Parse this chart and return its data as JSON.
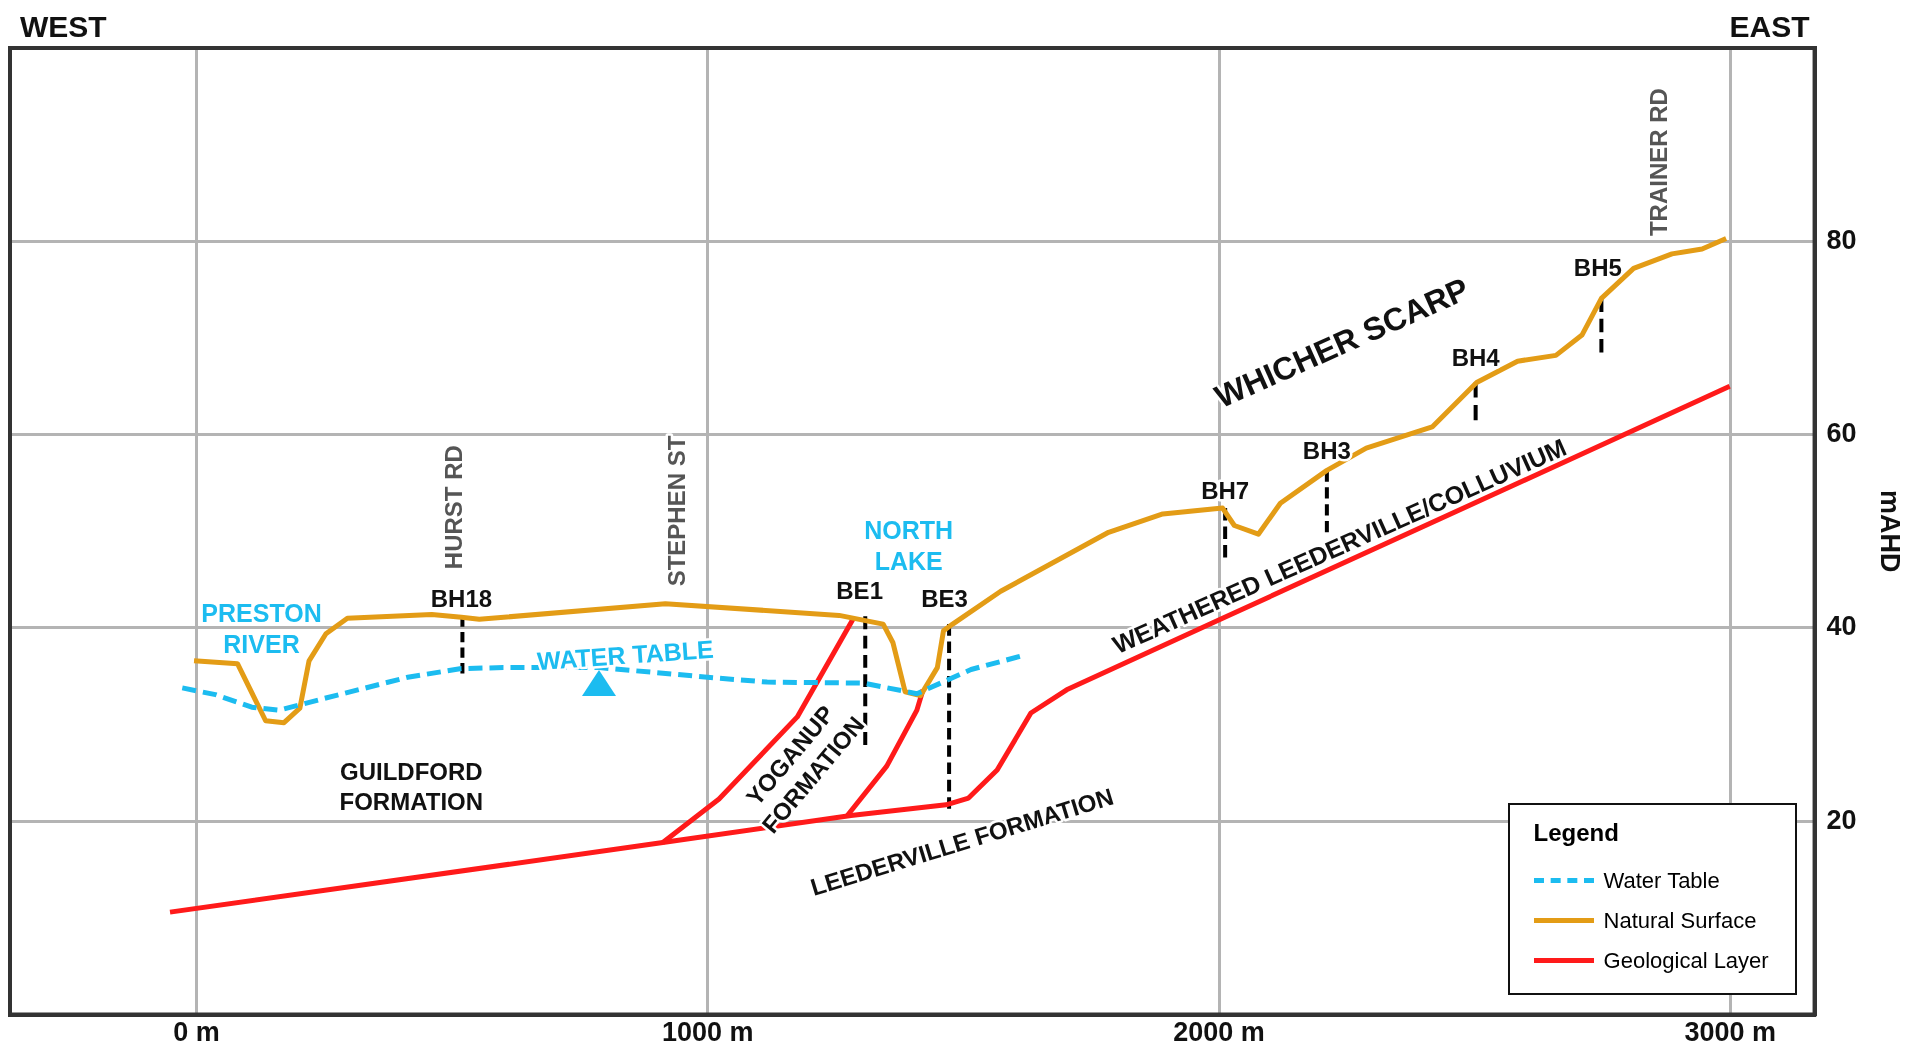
{
  "chart_data": {
    "type": "line",
    "xlabel": null,
    "ylabel": "mAHD",
    "legend_title": "Legend",
    "legend": "bottom right",
    "grid": true,
    "xlim": [
      -365,
      3165
    ],
    "ylim": [
      0,
      100
    ],
    "xticks": [
      {
        "value": 0,
        "label": "0 m"
      },
      {
        "value": 1000,
        "label": "1000 m"
      },
      {
        "value": 2000,
        "label": "2000 m"
      },
      {
        "value": 3000,
        "label": "3000 m"
      }
    ],
    "yticks": [
      20,
      40,
      60,
      80
    ],
    "series": [
      {
        "name": "Water Table",
        "color": "#1cbcf0",
        "line_style": "dashed",
        "x": [
          -28,
          37,
          108,
          162,
          249,
          413,
          518,
          600,
          788,
          1022,
          1116,
          1304,
          1409,
          1515,
          1620
        ],
        "values": [
          33.8,
          33.1,
          31.8,
          31.5,
          32.7,
          34.9,
          35.8,
          35.9,
          35.9,
          34.8,
          34.4,
          34.3,
          33.2,
          35.7,
          37.2
        ]
      },
      {
        "name": "Natural Surface",
        "color": "#e39c16",
        "line_style": "solid",
        "x": [
          -5,
          80,
          135,
          171,
          202,
          220,
          253,
          295,
          460,
          518,
          553,
          917,
          1257,
          1343,
          1362,
          1386,
          1416,
          1449,
          1461,
          1479,
          1573,
          1784,
          1890,
          2007,
          2030,
          2077,
          2120,
          2211,
          2288,
          2417,
          2504,
          2584,
          2659,
          2710,
          2748,
          2811,
          2886,
          2945,
          2992
        ],
        "values": [
          36.6,
          36.3,
          30.4,
          30.2,
          31.7,
          36.6,
          39.4,
          41.0,
          41.4,
          41.1,
          40.9,
          42.5,
          41.3,
          40.4,
          38.5,
          33.4,
          33.0,
          35.9,
          39.7,
          40.4,
          43.8,
          49.9,
          51.8,
          52.4,
          50.6,
          49.7,
          52.9,
          56.3,
          58.6,
          60.8,
          65.4,
          67.6,
          68.2,
          70.3,
          74.1,
          77.2,
          78.7,
          79.2,
          80.3
        ]
      },
      {
        "name": "Geological Layer",
        "color": "#ff1a1a",
        "line_style": "solid",
        "x": [
          -52,
          912,
          1280,
          1466,
          1510,
          1566,
          1632,
          1702,
          2007,
          2999
        ],
        "values": [
          10.6,
          17.8,
          20.6,
          21.7,
          22.4,
          25.3,
          31.2,
          33.6,
          41.0,
          65.0
        ]
      },
      {
        "color": "#ff1a1a",
        "line_style": "solid",
        "x": [
          912,
          1022,
          1175,
          1285
        ],
        "values": [
          17.8,
          22.3,
          30.8,
          41.0
        ]
      },
      {
        "color": "#ff1a1a",
        "line_style": "solid",
        "x": [
          1273,
          1350,
          1409,
          1421
        ],
        "values": [
          20.6,
          25.7,
          31.5,
          33.6
        ]
      },
      {
        "color": "#000000",
        "line_style": "dashed",
        "x": [
          520,
          520
        ],
        "values": [
          41.2,
          35.3
        ]
      },
      {
        "color": "#000000",
        "line_style": "dashed",
        "x": [
          1308,
          1308
        ],
        "values": [
          41.2,
          27.9
        ]
      },
      {
        "color": "#000000",
        "line_style": "dashed",
        "x": [
          1472,
          1472
        ],
        "values": [
          40.4,
          21.3
        ]
      },
      {
        "color": "#000000",
        "line_style": "dashed",
        "x": [
          2012,
          2012
        ],
        "values": [
          52.4,
          47.3
        ]
      },
      {
        "color": "#000000",
        "line_style": "dashed",
        "x": [
          2211,
          2211
        ],
        "values": [
          56.3,
          49.9
        ]
      },
      {
        "color": "#000000",
        "line_style": "dashed",
        "x": [
          2502,
          2502
        ],
        "values": [
          65.4,
          61.5
        ]
      },
      {
        "color": "#000000",
        "line_style": "dashed",
        "x": [
          2748,
          2748
        ],
        "values": [
          74.1,
          68.5
        ]
      }
    ],
    "annotations": [
      "WEST",
      "EAST",
      "PRESTON\nRIVER",
      "WATER TABLE",
      "NORTH\nLAKE",
      "GUILDFORD\nFORMATION",
      "YOGANUP\nFORMATION",
      "LEEDERVILLE FORMATION",
      "WEATHERED LEEDERVILLE/COLLUVIUM",
      "WHICHER SCARP",
      "HURST RD",
      "STEPHEN ST",
      "TRAINER RD",
      "BH18",
      "BE1",
      "BE3",
      "BH7",
      "BH3",
      "BH4",
      "BH5"
    ]
  }
}
